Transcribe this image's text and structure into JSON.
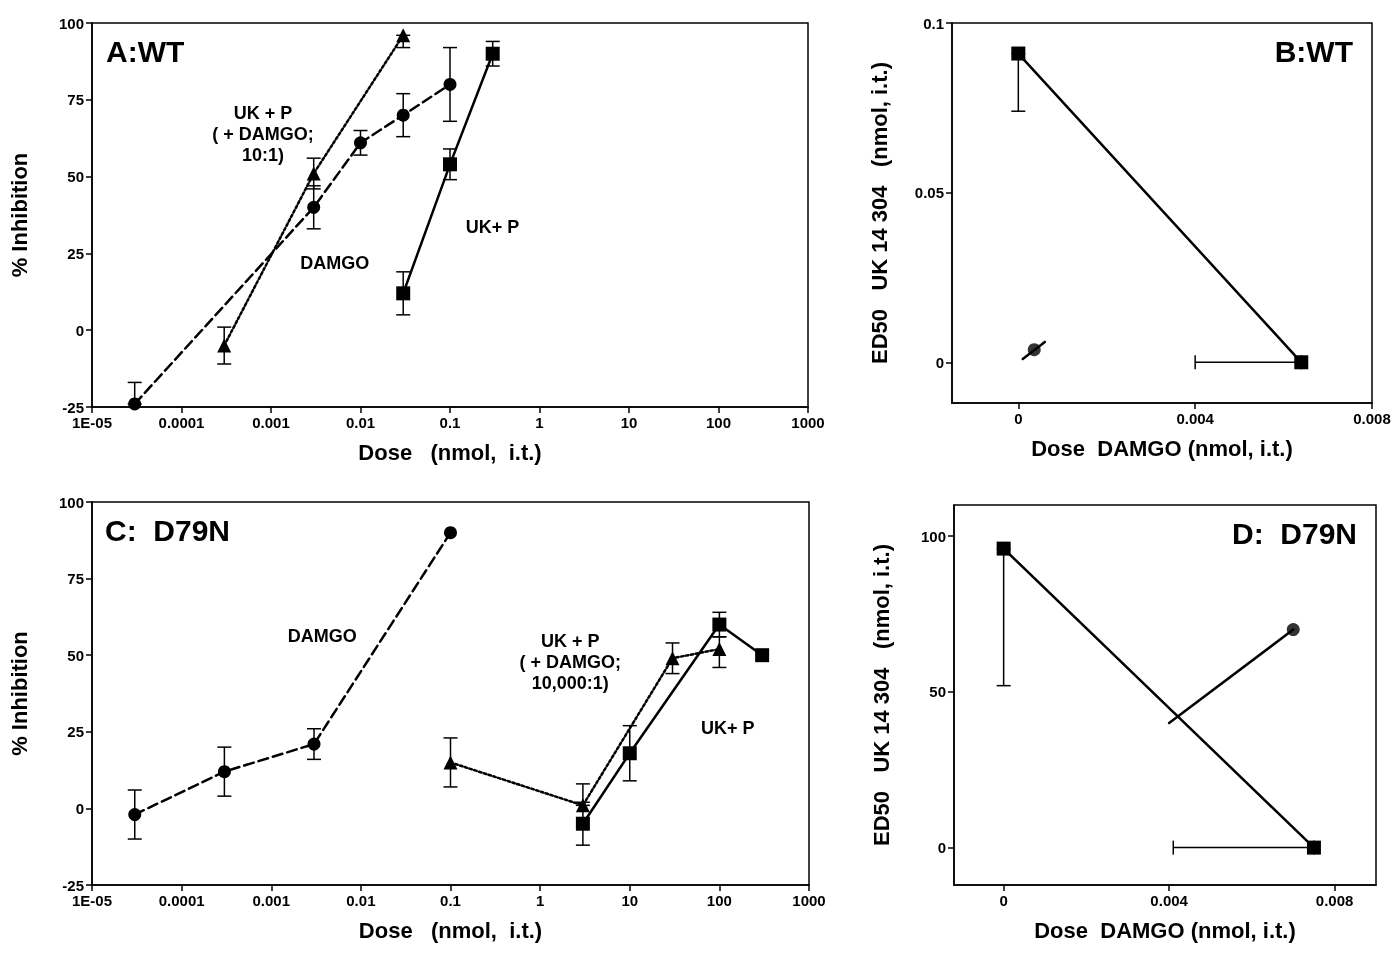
{
  "chart_data": [
    {
      "type": "line",
      "title": "A:WT",
      "xlabel": "Dose   (nmol,  i.t.)",
      "ylabel": "% Inhibition",
      "log": "x",
      "xlim": [
        1e-05,
        1000
      ],
      "ylim": [
        -25,
        100
      ],
      "xticks": [
        {
          "value": 1e-05,
          "label": "1E-05"
        },
        0.0001,
        0.001,
        0.01,
        0.1,
        1,
        10,
        100,
        1000
      ],
      "yticks": [
        -25,
        0,
        25,
        50,
        75,
        100
      ],
      "series": [
        {
          "name": "DAMGO",
          "color": "#000000",
          "marker": "circle",
          "line_style": "dashed",
          "x": [
            3e-05,
            0.003,
            0.01,
            0.03,
            0.1
          ],
          "values": [
            -24,
            40,
            61,
            70,
            80
          ],
          "errors": [
            [
              -24,
              -17
            ],
            [
              33,
              47
            ],
            [
              57,
              65
            ],
            [
              63,
              77
            ],
            [
              68,
              92
            ]
          ]
        },
        {
          "name": "UK + P\n( + DAMGO;\n10:1)",
          "color": "#000000",
          "marker": "triangle",
          "line_style": "dotted",
          "x": [
            0.0003,
            0.003,
            0.03
          ],
          "values": [
            -5,
            51,
            96
          ],
          "errors": [
            [
              -11,
              1
            ],
            [
              46,
              56
            ],
            [
              92,
              96
            ]
          ]
        },
        {
          "name": "UK+ P",
          "color": "#000000",
          "marker": "square",
          "line_style": "solid",
          "x": [
            0.03,
            0.1,
            0.3
          ],
          "values": [
            12,
            54,
            90
          ],
          "errors": [
            [
              5,
              19
            ],
            [
              49,
              59
            ],
            [
              86,
              94
            ]
          ]
        }
      ]
    },
    {
      "type": "line",
      "title": "B:WT",
      "xlabel": "Dose  DAMGO (nmol, i.t.)",
      "ylabel": "ED50   UK 14 304   (nmol, i.t.)",
      "xlim": [
        -0.0015,
        0.008
      ],
      "ylim": [
        -0.012,
        0.1
      ],
      "xticks": [
        0,
        0.004,
        0.008
      ],
      "yticks": [
        0,
        0.05,
        0.1
      ],
      "series": [
        {
          "color": "#000000",
          "marker": "square",
          "line_style": "solid",
          "x": [
            0,
            0.0064
          ],
          "values": [
            0.091,
            0
          ],
          "errors": [
            [
              0.074,
              0.091
            ],
            null
          ],
          "xerrors": [
            null,
            [
              0.004,
              0.0064
            ]
          ]
        },
        {
          "type": "line",
          "color": "#000000",
          "marker": "none",
          "line_style": "solid",
          "x": [
            0.0001,
            0.0006
          ],
          "values": [
            0.001,
            0.006
          ]
        },
        {
          "type": "scatter",
          "color": "#000000",
          "marker": "circle",
          "x": [
            0.00036
          ],
          "values": [
            0.0037
          ]
        }
      ]
    },
    {
      "type": "line",
      "title": "C:  D79N",
      "xlabel": "Dose   (nmol,  i.t.)",
      "ylabel": "% Inhibition",
      "log": "x",
      "xlim": [
        1e-05,
        1000
      ],
      "ylim": [
        -25,
        100
      ],
      "xticks": [
        {
          "value": 1e-05,
          "label": "1E-05"
        },
        0.0001,
        0.001,
        0.01,
        0.1,
        1,
        10,
        100,
        1000
      ],
      "yticks": [
        -25,
        0,
        25,
        50,
        75,
        100
      ],
      "series": [
        {
          "name": "DAMGO",
          "color": "#000000",
          "marker": "circle",
          "line_style": "dashed",
          "x": [
            3e-05,
            0.0003,
            0.003,
            0.1
          ],
          "values": [
            -2,
            12,
            21,
            90
          ],
          "errors": [
            [
              -10,
              6
            ],
            [
              4,
              20
            ],
            [
              16,
              26
            ],
            null
          ]
        },
        {
          "name": "UK + P\n( + DAMGO;\n10,000:1)",
          "color": "#000000",
          "marker": "triangle",
          "line_style": "dotted",
          "x": [
            0.1,
            3,
            30,
            100
          ],
          "values": [
            15,
            1,
            49,
            52
          ],
          "errors": [
            [
              7,
              23
            ],
            [
              1,
              8
            ],
            [
              44,
              54
            ],
            [
              46,
              56
            ]
          ]
        },
        {
          "name": "UK+ P",
          "color": "#000000",
          "marker": "square",
          "line_style": "solid",
          "x": [
            3,
            10,
            100,
            300
          ],
          "values": [
            -5,
            18,
            60,
            50
          ],
          "errors": [
            [
              -12,
              2
            ],
            [
              9,
              27
            ],
            [
              56,
              64
            ],
            null
          ]
        }
      ]
    },
    {
      "type": "line",
      "title": "D:  D79N",
      "xlabel": "Dose  DAMGO (nmol, i.t.)",
      "ylabel": "ED50   UK 14 304   (nmol, i.t.)",
      "xlim": [
        -0.0012,
        0.009
      ],
      "ylim": [
        -12,
        110
      ],
      "xticks": [
        0,
        0.004,
        0.008
      ],
      "yticks": [
        0,
        50,
        100
      ],
      "series": [
        {
          "color": "#000000",
          "marker": "square",
          "line_style": "solid",
          "x": [
            0,
            0.0075
          ],
          "values": [
            96,
            0
          ],
          "errors": [
            [
              52,
              96
            ],
            null
          ],
          "xerrors": [
            null,
            [
              0.0041,
              0.0075
            ]
          ]
        },
        {
          "type": "line",
          "color": "#000000",
          "marker": "none",
          "line_style": "solid",
          "x": [
            0.004,
            0.007
          ],
          "values": [
            40,
            70
          ]
        },
        {
          "type": "scatter",
          "color": "#000000",
          "marker": "circle",
          "x": [
            0.007
          ],
          "values": [
            70
          ]
        }
      ]
    }
  ]
}
